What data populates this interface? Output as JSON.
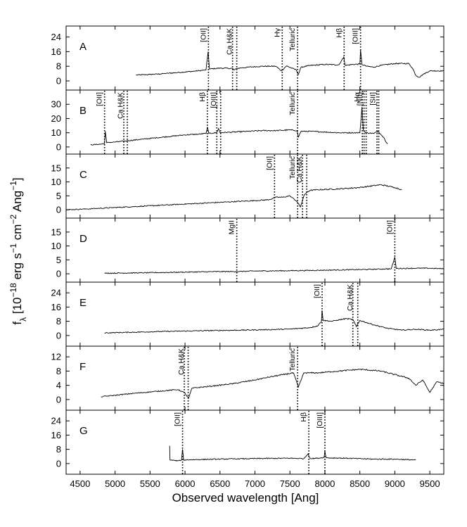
{
  "chart_data": {
    "type": "line",
    "x_axis": {
      "label": "Observed wavelength [Ang]",
      "range": [
        4300,
        9700
      ],
      "ticks": [
        4500,
        5000,
        5500,
        6000,
        6500,
        7000,
        7500,
        8000,
        8500,
        9000,
        9500
      ]
    },
    "y_axis": {
      "label": "f_λ [10^-18 erg s^-1 cm^-2 Ang^-1]"
    },
    "panels": [
      {
        "name": "A",
        "ylim": [
          -5,
          30
        ],
        "yticks": [
          0,
          8,
          16,
          24
        ],
        "spectrum": [
          [
            5300,
            3.2
          ],
          [
            5500,
            3.5
          ],
          [
            5700,
            4.0
          ],
          [
            5900,
            4.6
          ],
          [
            6100,
            5.2
          ],
          [
            6200,
            5.6
          ],
          [
            6300,
            6.0
          ],
          [
            6330,
            16.0
          ],
          [
            6350,
            6.5
          ],
          [
            6500,
            7.0
          ],
          [
            6680,
            6.8
          ],
          [
            6700,
            6.0
          ],
          [
            6750,
            6.9
          ],
          [
            6900,
            7.5
          ],
          [
            7100,
            8.0
          ],
          [
            7300,
            8.0
          ],
          [
            7380,
            5.5
          ],
          [
            7450,
            8.2
          ],
          [
            7590,
            6.0
          ],
          [
            7620,
            3.5
          ],
          [
            7660,
            7.5
          ],
          [
            7800,
            8.5
          ],
          [
            8000,
            9.0
          ],
          [
            8200,
            8.8
          ],
          [
            8270,
            13.0
          ],
          [
            8290,
            8.5
          ],
          [
            8400,
            9.0
          ],
          [
            8500,
            9.2
          ],
          [
            8510,
            17.0
          ],
          [
            8530,
            9.0
          ],
          [
            8600,
            8.0
          ],
          [
            8700,
            7.5
          ],
          [
            8800,
            8.5
          ],
          [
            9000,
            9.5
          ],
          [
            9200,
            9.5
          ],
          [
            9260,
            6.5
          ],
          [
            9300,
            3.0
          ],
          [
            9350,
            2.0
          ],
          [
            9400,
            3.5
          ],
          [
            9500,
            5.5
          ],
          [
            9700,
            5.5
          ]
        ],
        "lines": [
          {
            "label": "[OII]",
            "x": [
              6335
            ]
          },
          {
            "label": "Ca H&K",
            "x": [
              6680,
              6740
            ]
          },
          {
            "label": "Hγ",
            "x": [
              7390
            ]
          },
          {
            "label": "Telluric",
            "x": [
              7610
            ]
          },
          {
            "label": "Hβ",
            "x": [
              8275
            ]
          },
          {
            "label": "[OIII]",
            "x": [
              8510
            ]
          }
        ]
      },
      {
        "name": "B",
        "ylim": [
          -5,
          40
        ],
        "yticks": [
          0,
          10,
          20,
          30
        ],
        "spectrum": [
          [
            4650,
            1.5
          ],
          [
            4800,
            2.0
          ],
          [
            4850,
            2.5
          ],
          [
            4860,
            11.0
          ],
          [
            4880,
            3.0
          ],
          [
            5000,
            3.5
          ],
          [
            5200,
            4.5
          ],
          [
            5400,
            5.5
          ],
          [
            5600,
            6.5
          ],
          [
            5800,
            7.5
          ],
          [
            6000,
            8.5
          ],
          [
            6200,
            9.0
          ],
          [
            6300,
            9.5
          ],
          [
            6320,
            14.0
          ],
          [
            6340,
            9.5
          ],
          [
            6450,
            10.0
          ],
          [
            6480,
            13.0
          ],
          [
            6500,
            10.0
          ],
          [
            6700,
            10.5
          ],
          [
            6900,
            11.0
          ],
          [
            7100,
            11.5
          ],
          [
            7300,
            11.5
          ],
          [
            7500,
            12.0
          ],
          [
            7600,
            11.5
          ],
          [
            7620,
            7.0
          ],
          [
            7660,
            11.0
          ],
          [
            7800,
            11.0
          ],
          [
            8000,
            10.5
          ],
          [
            8200,
            10.0
          ],
          [
            8400,
            10.0
          ],
          [
            8500,
            10.0
          ],
          [
            8530,
            28.0
          ],
          [
            8550,
            12.0
          ],
          [
            8580,
            10.0
          ],
          [
            8700,
            9.5
          ],
          [
            8760,
            11.0
          ],
          [
            8800,
            9.0
          ],
          [
            8850,
            6.0
          ],
          [
            8880,
            3.0
          ],
          [
            8900,
            2.5
          ]
        ],
        "lines": [
          {
            "label": "[OII]",
            "x": [
              4850
            ]
          },
          {
            "label": "Ca H&K",
            "x": [
              5125,
              5175
            ]
          },
          {
            "label": "Hβ",
            "x": [
              6320
            ]
          },
          {
            "label": "[OIII]",
            "x": [
              6455,
              6510
            ]
          },
          {
            "label": "Telluric",
            "x": [
              7610
            ]
          },
          {
            "label": "Hα",
            "x": [
              8535
            ]
          },
          {
            "label": "[NII]",
            "x": [
              8560,
              8590
            ]
          },
          {
            "label": "[SII]",
            "x": [
              8745,
              8770
            ]
          }
        ]
      },
      {
        "name": "C",
        "ylim": [
          -3,
          20
        ],
        "yticks": [
          0,
          5,
          10,
          15
        ],
        "spectrum": [
          [
            4300,
            0.0
          ],
          [
            4600,
            0.3
          ],
          [
            5000,
            0.8
          ],
          [
            5400,
            1.3
          ],
          [
            5800,
            1.8
          ],
          [
            6200,
            2.3
          ],
          [
            6600,
            2.8
          ],
          [
            7000,
            3.3
          ],
          [
            7200,
            3.6
          ],
          [
            7300,
            4.5
          ],
          [
            7400,
            4.5
          ],
          [
            7500,
            5.0
          ],
          [
            7600,
            3.0
          ],
          [
            7650,
            1.0
          ],
          [
            7700,
            5.0
          ],
          [
            7750,
            6.5
          ],
          [
            7800,
            7.0
          ],
          [
            7900,
            7.2
          ],
          [
            8200,
            7.5
          ],
          [
            8500,
            8.0
          ],
          [
            8800,
            9.0
          ],
          [
            9000,
            8.0
          ],
          [
            9100,
            7.2
          ]
        ],
        "lines": [
          {
            "label": "[OII]",
            "x": [
              7280
            ]
          },
          {
            "label": "Telluric",
            "x": [
              7610
            ]
          },
          {
            "label": "Ca H&K",
            "x": [
              7680,
              7740
            ]
          }
        ]
      },
      {
        "name": "D",
        "ylim": [
          -3,
          20
        ],
        "yticks": [
          0,
          5,
          10,
          15
        ],
        "spectrum": [
          [
            4850,
            0.2
          ],
          [
            5500,
            0.4
          ],
          [
            6000,
            0.6
          ],
          [
            6500,
            0.8
          ],
          [
            6730,
            0.8
          ],
          [
            7000,
            1.0
          ],
          [
            7500,
            1.1
          ],
          [
            8000,
            1.3
          ],
          [
            8500,
            1.5
          ],
          [
            8950,
            1.8
          ],
          [
            9000,
            6.0
          ],
          [
            9020,
            1.9
          ],
          [
            9300,
            2.0
          ],
          [
            9500,
            2.0
          ],
          [
            9700,
            1.8
          ]
        ],
        "lines": [
          {
            "label": "MgII",
            "x": [
              6740
            ]
          },
          {
            "label": "[OII]",
            "x": [
              9000
            ]
          }
        ]
      },
      {
        "name": "E",
        "ylim": [
          -6,
          30
        ],
        "yticks": [
          0,
          8,
          16,
          24
        ],
        "spectrum": [
          [
            4850,
            1.5
          ],
          [
            5200,
            1.8
          ],
          [
            5600,
            2.2
          ],
          [
            6000,
            2.5
          ],
          [
            6400,
            2.8
          ],
          [
            6800,
            3.0
          ],
          [
            7200,
            3.3
          ],
          [
            7500,
            3.6
          ],
          [
            7800,
            4.5
          ],
          [
            7900,
            5.5
          ],
          [
            7950,
            8.0
          ],
          [
            7960,
            14.0
          ],
          [
            7975,
            8.5
          ],
          [
            8100,
            8.0
          ],
          [
            8300,
            9.5
          ],
          [
            8400,
            9.0
          ],
          [
            8450,
            5.0
          ],
          [
            8500,
            8.5
          ],
          [
            8700,
            6.0
          ],
          [
            8900,
            4.0
          ],
          [
            9100,
            3.0
          ],
          [
            9300,
            3.5
          ],
          [
            9500,
            3.0
          ],
          [
            9700,
            3.5
          ]
        ],
        "lines": [
          {
            "label": "[OII]",
            "x": [
              7960
            ]
          },
          {
            "label": "Ca H&K",
            "x": [
              8400,
              8470
            ]
          }
        ]
      },
      {
        "name": "F",
        "ylim": [
          -3,
          15
        ],
        "yticks": [
          0,
          4,
          8,
          12
        ],
        "spectrum": [
          [
            4800,
            0.8
          ],
          [
            5000,
            1.2
          ],
          [
            5300,
            1.8
          ],
          [
            5600,
            2.3
          ],
          [
            5900,
            2.8
          ],
          [
            6000,
            1.8
          ],
          [
            6050,
            0.3
          ],
          [
            6100,
            3.2
          ],
          [
            6400,
            3.8
          ],
          [
            6700,
            4.5
          ],
          [
            7000,
            5.5
          ],
          [
            7200,
            6.3
          ],
          [
            7400,
            7.0
          ],
          [
            7550,
            7.5
          ],
          [
            7620,
            3.5
          ],
          [
            7700,
            7.5
          ],
          [
            7900,
            7.5
          ],
          [
            8200,
            8.0
          ],
          [
            8500,
            8.5
          ],
          [
            8800,
            8.0
          ],
          [
            9000,
            7.0
          ],
          [
            9200,
            6.0
          ],
          [
            9300,
            4.0
          ],
          [
            9400,
            5.5
          ],
          [
            9500,
            2.0
          ],
          [
            9600,
            5.0
          ],
          [
            9700,
            4.5
          ]
        ],
        "lines": [
          {
            "label": "Ca H&K",
            "x": [
              5990,
              6045
            ]
          },
          {
            "label": "Telluric",
            "x": [
              7610
            ]
          }
        ]
      },
      {
        "name": "G",
        "ylim": [
          -6,
          30
        ],
        "yticks": [
          0,
          8,
          16,
          24
        ],
        "spectrum": [
          [
            5780,
            10.0
          ],
          [
            5785,
            2.0
          ],
          [
            5900,
            1.5
          ],
          [
            5950,
            2.0
          ],
          [
            5965,
            8.0
          ],
          [
            5980,
            2.0
          ],
          [
            6100,
            2.2
          ],
          [
            6500,
            2.5
          ],
          [
            7000,
            2.8
          ],
          [
            7500,
            3.0
          ],
          [
            7700,
            2.8
          ],
          [
            7760,
            5.5
          ],
          [
            7790,
            2.8
          ],
          [
            7900,
            3.0
          ],
          [
            7990,
            3.5
          ],
          [
            8000,
            7.0
          ],
          [
            8020,
            3.2
          ],
          [
            8300,
            3.0
          ],
          [
            8700,
            2.5
          ],
          [
            9000,
            2.5
          ],
          [
            9300,
            2.0
          ]
        ],
        "lines": [
          {
            "label": "[OII]",
            "x": [
              5965
            ]
          },
          {
            "label": "Hβ",
            "x": [
              7770
            ]
          },
          {
            "label": "[OIII]",
            "x": [
              8000
            ]
          }
        ]
      }
    ]
  }
}
